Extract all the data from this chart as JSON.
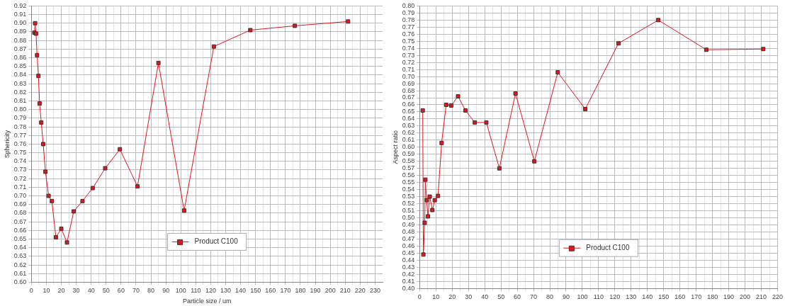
{
  "chart_data": [
    {
      "type": "line",
      "xlabel": "Particle size / um",
      "ylabel": "Sphericity",
      "marker": "square",
      "line_style": "solid",
      "grid": true,
      "legend": "bottom",
      "xlim": [
        0,
        235
      ],
      "xticks": [
        0,
        {
          "value": 5,
          "label": null
        },
        10,
        {
          "value": 15,
          "label": null
        },
        20,
        {
          "value": 25,
          "label": null
        },
        30,
        {
          "value": 35,
          "label": null
        },
        40,
        {
          "value": 45,
          "label": null
        },
        50,
        {
          "value": 55,
          "label": null
        },
        60,
        {
          "value": 65,
          "label": null
        },
        70,
        {
          "value": 75,
          "label": null
        },
        80,
        {
          "value": 85,
          "label": null
        },
        90,
        {
          "value": 95,
          "label": null
        },
        100,
        {
          "value": 105,
          "label": null
        },
        110,
        {
          "value": 115,
          "label": null
        },
        120,
        {
          "value": 125,
          "label": null
        },
        130,
        {
          "value": 135,
          "label": null
        },
        140,
        {
          "value": 145,
          "label": null
        },
        150,
        {
          "value": 155,
          "label": null
        },
        160,
        {
          "value": 165,
          "label": null
        },
        170,
        {
          "value": 175,
          "label": null
        },
        180,
        {
          "value": 185,
          "label": null
        },
        190,
        {
          "value": 195,
          "label": null
        },
        200,
        {
          "value": 205,
          "label": null
        },
        210,
        {
          "value": 215,
          "label": null
        },
        220,
        {
          "value": 225,
          "label": null
        },
        230
      ],
      "ylim": [
        0.6,
        0.92
      ],
      "yticks": [
        {
          "value": 0.6,
          "label": "0.60"
        },
        {
          "value": 0.61,
          "label": "0.61"
        },
        {
          "value": 0.62,
          "label": "0.62"
        },
        {
          "value": 0.63,
          "label": "0.63"
        },
        {
          "value": 0.64,
          "label": "0.64"
        },
        {
          "value": 0.65,
          "label": "0.65"
        },
        {
          "value": 0.66,
          "label": "0.66"
        },
        {
          "value": 0.67,
          "label": "0.67"
        },
        {
          "value": 0.68,
          "label": "0.68"
        },
        {
          "value": 0.69,
          "label": "0.69"
        },
        {
          "value": 0.7,
          "label": "0.70"
        },
        {
          "value": 0.71,
          "label": "0.71"
        },
        {
          "value": 0.72,
          "label": "0.72"
        },
        {
          "value": 0.73,
          "label": "0.73"
        },
        {
          "value": 0.74,
          "label": "0.74"
        },
        {
          "value": 0.75,
          "label": "0.75"
        },
        {
          "value": 0.76,
          "label": "0.76"
        },
        {
          "value": 0.77,
          "label": "0.77"
        },
        {
          "value": 0.78,
          "label": "0.78"
        },
        {
          "value": 0.79,
          "label": "0.79"
        },
        {
          "value": 0.8,
          "label": "0.80"
        },
        {
          "value": 0.81,
          "label": "0.81"
        },
        {
          "value": 0.82,
          "label": "0.82"
        },
        {
          "value": 0.83,
          "label": "0.83"
        },
        {
          "value": 0.84,
          "label": "0.84"
        },
        {
          "value": 0.85,
          "label": "0.85"
        },
        {
          "value": 0.86,
          "label": "0.86"
        },
        {
          "value": 0.87,
          "label": "0.87"
        },
        {
          "value": 0.88,
          "label": "0.88"
        },
        {
          "value": 0.89,
          "label": "0.89"
        },
        {
          "value": 0.9,
          "label": "0.90"
        },
        {
          "value": 0.91,
          "label": "0.91"
        },
        {
          "value": 0.92,
          "label": "0.92"
        }
      ],
      "x": [
        2.0,
        2.5,
        3.1,
        3.8,
        4.7,
        5.5,
        6.6,
        7.9,
        9.4,
        11.5,
        13.7,
        16.4,
        20.0,
        23.8,
        28.3,
        34.2,
        41.0,
        49.4,
        59.2,
        71.0,
        85.0,
        102.2,
        122.1,
        146.5,
        176.3,
        211.9
      ],
      "series": [
        {
          "name": "Product C100",
          "color": "#e8141c",
          "values": [
            0.889,
            0.9,
            0.888,
            0.863,
            0.839,
            0.807,
            0.785,
            0.76,
            0.728,
            0.7,
            0.694,
            0.652,
            0.662,
            0.646,
            0.682,
            0.694,
            0.709,
            0.732,
            0.754,
            0.711,
            0.854,
            0.683,
            0.873,
            0.892,
            0.897,
            0.902
          ]
        }
      ]
    },
    {
      "type": "line",
      "ylabel": "Aspect ratio",
      "marker": "square",
      "line_style": "solid",
      "grid": true,
      "legend": "bottom",
      "xlim": [
        0,
        220
      ],
      "xticks": [
        0,
        {
          "value": 5,
          "label": null
        },
        10,
        {
          "value": 15,
          "label": null
        },
        20,
        {
          "value": 25,
          "label": null
        },
        30,
        {
          "value": 35,
          "label": null
        },
        40,
        {
          "value": 45,
          "label": null
        },
        50,
        {
          "value": 55,
          "label": null
        },
        60,
        {
          "value": 65,
          "label": null
        },
        70,
        {
          "value": 75,
          "label": null
        },
        80,
        {
          "value": 85,
          "label": null
        },
        90,
        {
          "value": 95,
          "label": null
        },
        100,
        {
          "value": 105,
          "label": null
        },
        110,
        {
          "value": 115,
          "label": null
        },
        120,
        {
          "value": 125,
          "label": null
        },
        130,
        {
          "value": 135,
          "label": null
        },
        140,
        {
          "value": 145,
          "label": null
        },
        150,
        {
          "value": 155,
          "label": null
        },
        160,
        {
          "value": 165,
          "label": null
        },
        170,
        {
          "value": 175,
          "label": null
        },
        180,
        {
          "value": 185,
          "label": null
        },
        190,
        {
          "value": 195,
          "label": null
        },
        200,
        {
          "value": 205,
          "label": null
        },
        210,
        {
          "value": 215,
          "label": null
        },
        220
      ],
      "ylim": [
        0.4,
        0.8
      ],
      "yticks": [
        {
          "value": 0.4,
          "label": "0.40"
        },
        {
          "value": 0.41,
          "label": "0.41"
        },
        {
          "value": 0.42,
          "label": "0.42"
        },
        {
          "value": 0.43,
          "label": "0.43"
        },
        {
          "value": 0.44,
          "label": "0.44"
        },
        {
          "value": 0.45,
          "label": "0.45"
        },
        {
          "value": 0.46,
          "label": "0.46"
        },
        {
          "value": 0.47,
          "label": "0.47"
        },
        {
          "value": 0.48,
          "label": "0.48"
        },
        {
          "value": 0.49,
          "label": "0.49"
        },
        {
          "value": 0.5,
          "label": "0.50"
        },
        {
          "value": 0.51,
          "label": "0.51"
        },
        {
          "value": 0.52,
          "label": "0.52"
        },
        {
          "value": 0.53,
          "label": "0.53"
        },
        {
          "value": 0.54,
          "label": "0.54"
        },
        {
          "value": 0.55,
          "label": "0.55"
        },
        {
          "value": 0.56,
          "label": "0.56"
        },
        {
          "value": 0.57,
          "label": "0.57"
        },
        {
          "value": 0.58,
          "label": "0.58"
        },
        {
          "value": 0.59,
          "label": "0.59"
        },
        {
          "value": 0.6,
          "label": "0.60"
        },
        {
          "value": 0.61,
          "label": "0.61"
        },
        {
          "value": 0.62,
          "label": "0.62"
        },
        {
          "value": 0.63,
          "label": "0.63"
        },
        {
          "value": 0.64,
          "label": "0.64"
        },
        {
          "value": 0.65,
          "label": "0.65"
        },
        {
          "value": 0.66,
          "label": "0.66"
        },
        {
          "value": 0.67,
          "label": "0.67"
        },
        {
          "value": 0.68,
          "label": "0.68"
        },
        {
          "value": 0.69,
          "label": "0.69"
        },
        {
          "value": 0.7,
          "label": "0.70"
        },
        {
          "value": 0.71,
          "label": "0.71"
        },
        {
          "value": 0.72,
          "label": "0.72"
        },
        {
          "value": 0.73,
          "label": "0.73"
        },
        {
          "value": 0.74,
          "label": "0.74"
        },
        {
          "value": 0.75,
          "label": "0.75"
        },
        {
          "value": 0.76,
          "label": "0.76"
        },
        {
          "value": 0.77,
          "label": "0.77"
        },
        {
          "value": 0.78,
          "label": "0.78"
        },
        {
          "value": 0.79,
          "label": "0.79"
        },
        {
          "value": 0.8,
          "label": "0.80"
        }
      ],
      "x": [
        1.9,
        2.3,
        3.1,
        3.5,
        4.3,
        5.1,
        6.2,
        7.8,
        9.3,
        11.3,
        13.5,
        16.3,
        19.4,
        23.6,
        28.2,
        33.9,
        41.0,
        49.0,
        58.9,
        70.5,
        84.9,
        101.8,
        122.2,
        146.7,
        176.2,
        211.2
      ],
      "series": [
        {
          "name": "Product C100",
          "color": "#e8141c",
          "values": [
            0.652,
            0.448,
            0.493,
            0.554,
            0.525,
            0.502,
            0.53,
            0.511,
            0.525,
            0.531,
            0.606,
            0.66,
            0.659,
            0.672,
            0.652,
            0.635,
            0.635,
            0.57,
            0.676,
            0.58,
            0.706,
            0.654,
            0.747,
            0.78,
            0.738,
            0.739
          ]
        }
      ]
    }
  ]
}
